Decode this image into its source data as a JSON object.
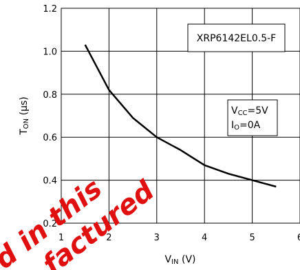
{
  "chart_data": {
    "type": "line",
    "xlabel": {
      "main": "V",
      "sub": "IN",
      "unit": " (V)"
    },
    "ylabel": {
      "main": "T",
      "sub": "ON",
      "unit": " (µs)"
    },
    "xlim": [
      1,
      6
    ],
    "ylim": [
      0.2,
      1.2
    ],
    "xticks": [
      1,
      2,
      3,
      4,
      5,
      6
    ],
    "yticks": [
      0.2,
      0.4,
      0.6,
      0.8,
      1.0,
      1.2
    ],
    "xtick_labels": [
      "1",
      "2",
      "3",
      "4",
      "5",
      "6"
    ],
    "ytick_labels": [
      "0.2",
      "0.4",
      "0.6",
      "0.8",
      "1.0",
      "1.2"
    ],
    "grid": true,
    "series": [
      {
        "x": [
          1.5,
          2.0,
          2.5,
          3.0,
          3.5,
          4.0,
          4.5,
          5.0,
          5.5
        ],
        "values": [
          1.03,
          0.82,
          0.69,
          0.6,
          0.54,
          0.47,
          0.43,
          0.4,
          0.37
        ]
      }
    ],
    "annotations": {
      "part_box": "XRP6142EL0.5-F",
      "cond_line1": {
        "main": "V",
        "sub": "CC",
        "rest": "=5V"
      },
      "cond_line2": {
        "main": "I",
        "sub": "O",
        "rest": "=0A"
      }
    }
  },
  "watermark": [
    "d in this",
    "factured"
  ],
  "colors": {
    "line": "#000000",
    "grid": "#000000",
    "watermark": "#e01010"
  }
}
